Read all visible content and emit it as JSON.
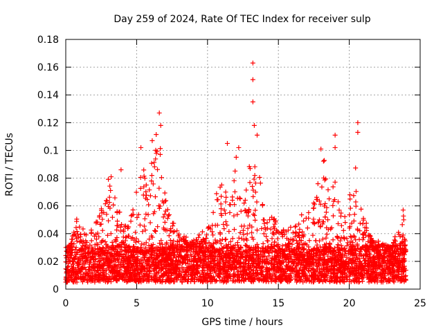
{
  "chart_data": {
    "type": "scatter",
    "title": "Day 259 of 2024, Rate Of TEC Index for receiver sulp",
    "xlabel": "GPS time / hours",
    "ylabel": "ROTI / TECUs",
    "xlim": [
      0,
      25
    ],
    "ylim": [
      0,
      0.18
    ],
    "xticks": [
      "0",
      "5",
      "10",
      "15",
      "20",
      "25"
    ],
    "yticks": [
      "0",
      "0.02",
      "0.04",
      "0.06",
      "0.08",
      "0.1",
      "0.12",
      "0.14",
      "0.16",
      "0.18"
    ],
    "grid": true,
    "marker": "+",
    "color": "#ff0000",
    "series": [
      {
        "name": "ROTI",
        "baseline_range": [
          0.005,
          0.03
        ],
        "envelope": [
          {
            "x": 0.0,
            "y": 0.028
          },
          {
            "x": 0.5,
            "y": 0.04
          },
          {
            "x": 0.8,
            "y": 0.055
          },
          {
            "x": 1.5,
            "y": 0.04
          },
          {
            "x": 2.0,
            "y": 0.045
          },
          {
            "x": 2.5,
            "y": 0.06
          },
          {
            "x": 3.0,
            "y": 0.08
          },
          {
            "x": 3.5,
            "y": 0.07
          },
          {
            "x": 4.0,
            "y": 0.055
          },
          {
            "x": 4.5,
            "y": 0.045
          },
          {
            "x": 5.0,
            "y": 0.08
          },
          {
            "x": 5.5,
            "y": 0.09
          },
          {
            "x": 6.0,
            "y": 0.098
          },
          {
            "x": 6.5,
            "y": 0.12
          },
          {
            "x": 7.0,
            "y": 0.07
          },
          {
            "x": 7.5,
            "y": 0.05
          },
          {
            "x": 8.0,
            "y": 0.04
          },
          {
            "x": 9.0,
            "y": 0.035
          },
          {
            "x": 10.0,
            "y": 0.045
          },
          {
            "x": 11.0,
            "y": 0.09
          },
          {
            "x": 11.5,
            "y": 0.06
          },
          {
            "x": 12.0,
            "y": 0.1
          },
          {
            "x": 12.5,
            "y": 0.055
          },
          {
            "x": 13.0,
            "y": 0.1
          },
          {
            "x": 13.5,
            "y": 0.095
          },
          {
            "x": 14.0,
            "y": 0.06
          },
          {
            "x": 15.0,
            "y": 0.05
          },
          {
            "x": 16.0,
            "y": 0.045
          },
          {
            "x": 17.0,
            "y": 0.06
          },
          {
            "x": 17.5,
            "y": 0.075
          },
          {
            "x": 18.0,
            "y": 0.1
          },
          {
            "x": 18.5,
            "y": 0.085
          },
          {
            "x": 19.0,
            "y": 0.09
          },
          {
            "x": 19.5,
            "y": 0.05
          },
          {
            "x": 20.0,
            "y": 0.065
          },
          {
            "x": 20.6,
            "y": 0.115
          },
          {
            "x": 21.0,
            "y": 0.055
          },
          {
            "x": 21.5,
            "y": 0.04
          },
          {
            "x": 22.0,
            "y": 0.035
          },
          {
            "x": 23.0,
            "y": 0.03
          },
          {
            "x": 23.8,
            "y": 0.057
          },
          {
            "x": 24.0,
            "y": 0.035
          }
        ],
        "outliers": [
          {
            "x": 6.6,
            "y": 0.127
          },
          {
            "x": 6.7,
            "y": 0.118
          },
          {
            "x": 6.1,
            "y": 0.107
          },
          {
            "x": 5.3,
            "y": 0.102
          },
          {
            "x": 3.2,
            "y": 0.081
          },
          {
            "x": 3.9,
            "y": 0.086
          },
          {
            "x": 11.4,
            "y": 0.105
          },
          {
            "x": 12.2,
            "y": 0.102
          },
          {
            "x": 13.2,
            "y": 0.163
          },
          {
            "x": 13.2,
            "y": 0.151
          },
          {
            "x": 13.2,
            "y": 0.135
          },
          {
            "x": 13.3,
            "y": 0.118
          },
          {
            "x": 13.5,
            "y": 0.111
          },
          {
            "x": 18.0,
            "y": 0.101
          },
          {
            "x": 19.0,
            "y": 0.111
          },
          {
            "x": 19.0,
            "y": 0.102
          },
          {
            "x": 20.6,
            "y": 0.12
          },
          {
            "x": 20.6,
            "y": 0.113
          },
          {
            "x": 23.8,
            "y": 0.057
          }
        ]
      }
    ]
  }
}
